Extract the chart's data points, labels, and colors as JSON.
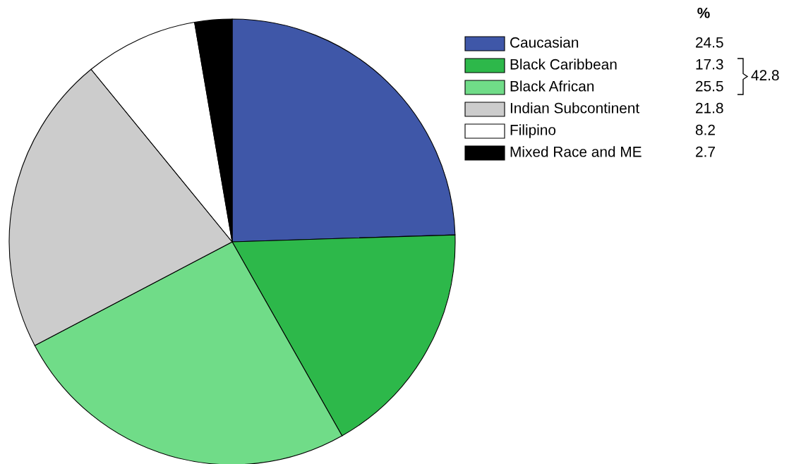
{
  "chart_data": {
    "type": "pie",
    "categories": [
      "Caucasian",
      "Black Caribbean",
      "Black African",
      "Indian Subcontinent",
      "Filipino",
      "Mixed Race and ME"
    ],
    "values": [
      24.5,
      17.3,
      25.5,
      21.8,
      8.2,
      2.7
    ],
    "colors": [
      "#3f57a8",
      "#2db84a",
      "#70dc88",
      "#cccccc",
      "#ffffff",
      "#000000"
    ],
    "data_labels": true,
    "legend": "top right",
    "annotations": [
      "%",
      "42.8"
    ]
  }
}
